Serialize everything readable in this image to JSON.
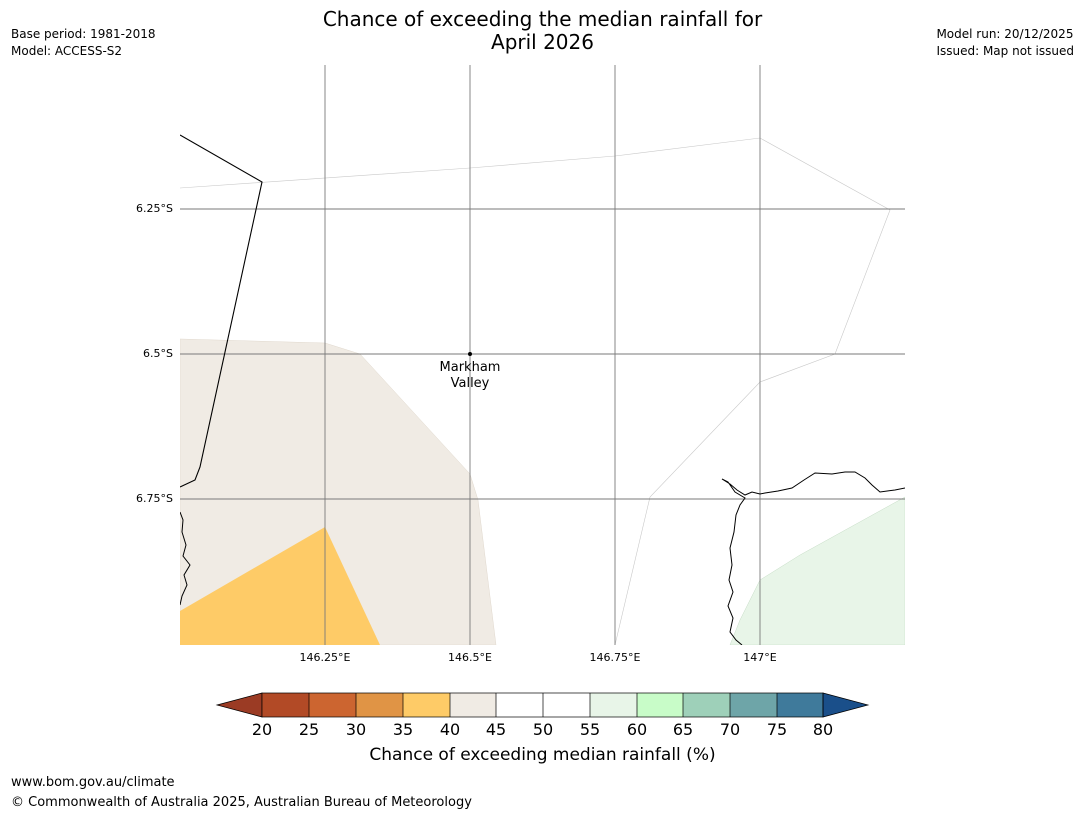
{
  "title": {
    "line1": "Chance of exceeding the median rainfall for",
    "line2": "April 2026"
  },
  "meta_left": {
    "base_period": "Base period: 1981-2018",
    "model": "Model: ACCESS-S2"
  },
  "meta_right": {
    "model_run": "Model run: 20/12/2025",
    "issued": "Issued: Map not issued"
  },
  "map": {
    "lat_labels": [
      "6.25°S",
      "6.5°S",
      "6.75°S"
    ],
    "lon_labels": [
      "146.25°E",
      "146.5°E",
      "146.75°E",
      "147°E"
    ],
    "place": {
      "name_line1": "Markham",
      "name_line2": "Valley"
    }
  },
  "colorbar": {
    "ticks": [
      "20",
      "25",
      "30",
      "35",
      "40",
      "45",
      "50",
      "55",
      "60",
      "65",
      "70",
      "75",
      "80"
    ],
    "colors": {
      "below_20": "#9b3b24",
      "20-25": "#b24a26",
      "25-30": "#cc6530",
      "30-35": "#e09445",
      "35-40": "#fecb67",
      "40-45": "#f0ebe4",
      "45-50": "#ffffff",
      "50-55": "#ffffff",
      "55-60": "#e8f5e8",
      "60-65": "#c8fcc8",
      "65-70": "#9ed0b9",
      "70-75": "#6ea5a8",
      "75-80": "#3f7a9b",
      "above_80": "#1a4f8a"
    },
    "label": "Chance of exceeding median rainfall (%)"
  },
  "footer": {
    "url": "www.bom.gov.au/climate",
    "copyright": "© Commonwealth of Australia 2025, Australian Bureau of Meteorology"
  }
}
